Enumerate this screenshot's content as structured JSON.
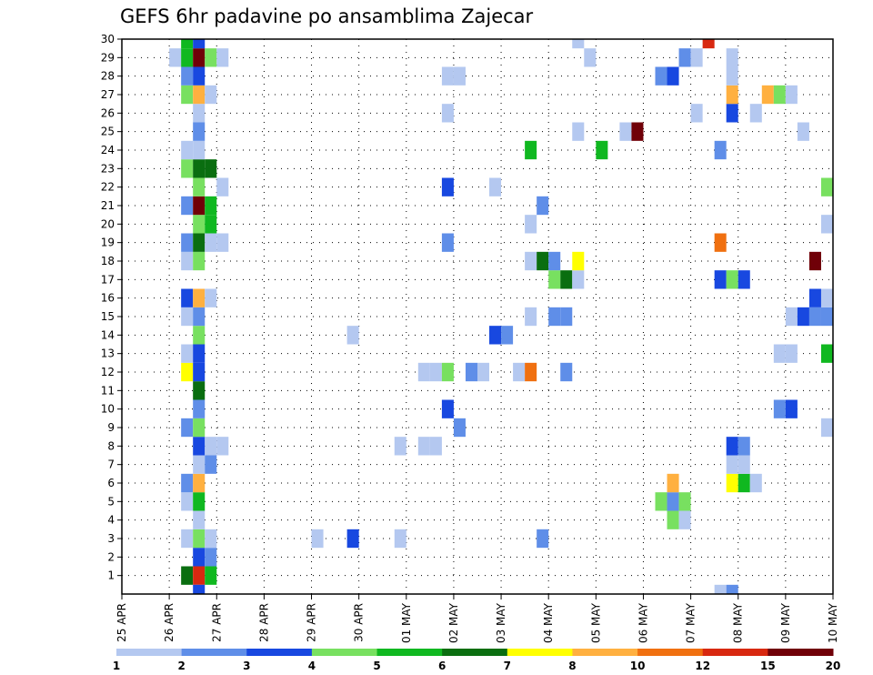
{
  "chart_data": {
    "type": "heatmap",
    "title": "GEFS 6hr padavine po ansamblima Zajecar",
    "x_tick_labels": [
      "25 APR",
      "26 APR",
      "27 APR",
      "28 APR",
      "29 APR",
      "30 APR",
      "01 MAY",
      "02 MAY",
      "03 MAY",
      "04 MAY",
      "05 MAY",
      "06 MAY",
      "07 MAY",
      "08 MAY",
      "09 MAY",
      "10 MAY"
    ],
    "x_range_steps": [
      0,
      60
    ],
    "y_tick_labels": [
      "1",
      "2",
      "3",
      "4",
      "5",
      "6",
      "7",
      "8",
      "9",
      "10",
      "11",
      "12",
      "13",
      "14",
      "15",
      "16",
      "17",
      "18",
      "19",
      "20",
      "21",
      "22",
      "23",
      "24",
      "25",
      "26",
      "27",
      "28",
      "29",
      "30"
    ],
    "y_range": [
      0,
      30
    ],
    "grid": true,
    "colorbar": {
      "labels": [
        "1",
        "2",
        "3",
        "4",
        "5",
        "6",
        "7",
        "8",
        "10",
        "12",
        "15",
        "20"
      ],
      "colors": [
        "#b4c8f0",
        "#5f8ee8",
        "#1848e0",
        "#78e060",
        "#10b820",
        "#0a6e10",
        "#ffff00",
        "#ffb040",
        "#f07010",
        "#d82810",
        "#700008"
      ]
    },
    "cells": [
      [
        6,
        1,
        6
      ],
      [
        7,
        1,
        10
      ],
      [
        8,
        1,
        5
      ],
      [
        7,
        2,
        3
      ],
      [
        8,
        2,
        2
      ],
      [
        6,
        3,
        1
      ],
      [
        7,
        3,
        4
      ],
      [
        8,
        3,
        1
      ],
      [
        17,
        3,
        1
      ],
      [
        20,
        3,
        3
      ],
      [
        24,
        3,
        1
      ],
      [
        36,
        3,
        2
      ],
      [
        7,
        4,
        1
      ],
      [
        47,
        4,
        4
      ],
      [
        48,
        4,
        1
      ],
      [
        6,
        5,
        1
      ],
      [
        7,
        5,
        5
      ],
      [
        46,
        5,
        4
      ],
      [
        47,
        5,
        2
      ],
      [
        48,
        5,
        4
      ],
      [
        6,
        6,
        2
      ],
      [
        7,
        6,
        8
      ],
      [
        47,
        6,
        8
      ],
      [
        52,
        6,
        7
      ],
      [
        53,
        6,
        5
      ],
      [
        54,
        6,
        1
      ],
      [
        7,
        7,
        1
      ],
      [
        8,
        7,
        2
      ],
      [
        52,
        7,
        1
      ],
      [
        53,
        7,
        1
      ],
      [
        7,
        8,
        3
      ],
      [
        8,
        8,
        1
      ],
      [
        9,
        8,
        1
      ],
      [
        24,
        8,
        1
      ],
      [
        26,
        8,
        1
      ],
      [
        27,
        8,
        1
      ],
      [
        52,
        8,
        3
      ],
      [
        53,
        8,
        2
      ],
      [
        6,
        9,
        2
      ],
      [
        7,
        9,
        4
      ],
      [
        29,
        9,
        2
      ],
      [
        60,
        9,
        1
      ],
      [
        7,
        10,
        2
      ],
      [
        28,
        10,
        3
      ],
      [
        56,
        10,
        2
      ],
      [
        57,
        10,
        3
      ],
      [
        7,
        11,
        6
      ],
      [
        6,
        12,
        7
      ],
      [
        7,
        12,
        3
      ],
      [
        26,
        12,
        1
      ],
      [
        27,
        12,
        1
      ],
      [
        28,
        12,
        4
      ],
      [
        30,
        12,
        2
      ],
      [
        31,
        12,
        1
      ],
      [
        34,
        12,
        1
      ],
      [
        35,
        12,
        9
      ],
      [
        38,
        12,
        2
      ],
      [
        6,
        13,
        1
      ],
      [
        7,
        13,
        3
      ],
      [
        56,
        13,
        1
      ],
      [
        57,
        13,
        1
      ],
      [
        60,
        13,
        5
      ],
      [
        7,
        14,
        4
      ],
      [
        20,
        14,
        1
      ],
      [
        32,
        14,
        3
      ],
      [
        33,
        14,
        2
      ],
      [
        6,
        15,
        1
      ],
      [
        7,
        15,
        2
      ],
      [
        35,
        15,
        1
      ],
      [
        37,
        15,
        2
      ],
      [
        38,
        15,
        2
      ],
      [
        57,
        15,
        1
      ],
      [
        58,
        15,
        3
      ],
      [
        59,
        15,
        2
      ],
      [
        60,
        15,
        2
      ],
      [
        6,
        16,
        3
      ],
      [
        7,
        16,
        8
      ],
      [
        8,
        16,
        1
      ],
      [
        59,
        16,
        3
      ],
      [
        60,
        16,
        1
      ],
      [
        37,
        17,
        4
      ],
      [
        38,
        17,
        6
      ],
      [
        39,
        17,
        1
      ],
      [
        51,
        17,
        3
      ],
      [
        52,
        17,
        4
      ],
      [
        53,
        17,
        3
      ],
      [
        6,
        18,
        1
      ],
      [
        7,
        18,
        4
      ],
      [
        35,
        18,
        1
      ],
      [
        36,
        18,
        6
      ],
      [
        37,
        18,
        2
      ],
      [
        39,
        18,
        7
      ],
      [
        59,
        18,
        11
      ],
      [
        6,
        19,
        2
      ],
      [
        7,
        19,
        6
      ],
      [
        8,
        19,
        1
      ],
      [
        9,
        19,
        1
      ],
      [
        28,
        19,
        2
      ],
      [
        51,
        19,
        9
      ],
      [
        7,
        20,
        4
      ],
      [
        8,
        20,
        5
      ],
      [
        35,
        20,
        1
      ],
      [
        60,
        20,
        1
      ],
      [
        6,
        21,
        2
      ],
      [
        7,
        21,
        11
      ],
      [
        8,
        21,
        5
      ],
      [
        36,
        21,
        2
      ],
      [
        7,
        22,
        4
      ],
      [
        9,
        22,
        1
      ],
      [
        28,
        22,
        3
      ],
      [
        32,
        22,
        1
      ],
      [
        60,
        22,
        4
      ],
      [
        6,
        23,
        4
      ],
      [
        7,
        23,
        6
      ],
      [
        8,
        23,
        6
      ],
      [
        6,
        24,
        1
      ],
      [
        7,
        24,
        1
      ],
      [
        35,
        24,
        5
      ],
      [
        41,
        24,
        5
      ],
      [
        51,
        24,
        2
      ],
      [
        7,
        25,
        2
      ],
      [
        39,
        25,
        1
      ],
      [
        43,
        25,
        1
      ],
      [
        44,
        25,
        11
      ],
      [
        58,
        25,
        1
      ],
      [
        7,
        26,
        1
      ],
      [
        28,
        26,
        1
      ],
      [
        49,
        26,
        1
      ],
      [
        52,
        26,
        3
      ],
      [
        54,
        26,
        1
      ],
      [
        6,
        27,
        4
      ],
      [
        7,
        27,
        8
      ],
      [
        8,
        27,
        1
      ],
      [
        52,
        27,
        8
      ],
      [
        55,
        27,
        8
      ],
      [
        56,
        27,
        4
      ],
      [
        57,
        27,
        1
      ],
      [
        6,
        28,
        2
      ],
      [
        7,
        28,
        3
      ],
      [
        28,
        28,
        1
      ],
      [
        29,
        28,
        1
      ],
      [
        46,
        28,
        2
      ],
      [
        47,
        28,
        3
      ],
      [
        52,
        28,
        1
      ],
      [
        5,
        29,
        1
      ],
      [
        6,
        29,
        5
      ],
      [
        7,
        29,
        11
      ],
      [
        8,
        29,
        4
      ],
      [
        9,
        29,
        1
      ],
      [
        40,
        29,
        1
      ],
      [
        48,
        29,
        2
      ],
      [
        49,
        29,
        1
      ],
      [
        52,
        29,
        1
      ],
      [
        6,
        30,
        5
      ],
      [
        7,
        30,
        3
      ],
      [
        39,
        30,
        1
      ],
      [
        50,
        30,
        10
      ],
      [
        51,
        0,
        1
      ],
      [
        52,
        0,
        2
      ],
      [
        7,
        0,
        3
      ]
    ]
  }
}
